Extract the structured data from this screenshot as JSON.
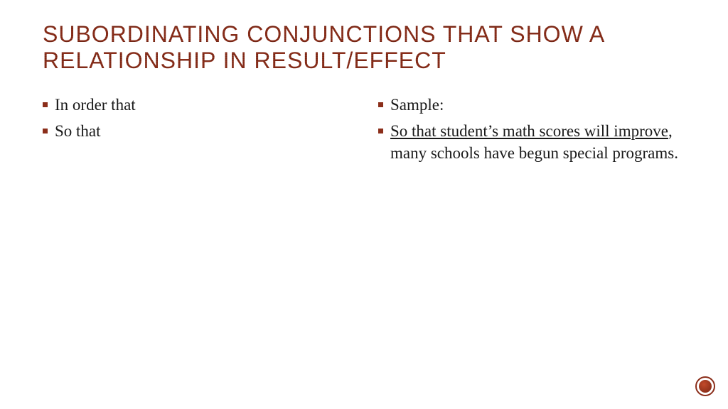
{
  "title": "SUBORDINATING CONJUNCTIONS THAT SHOW A RELATIONSHIP IN RESULT/EFFECT",
  "colors": {
    "heading": "#8b2e1a",
    "bullet": "#8b2e1a",
    "body_text": "#1a1a1a",
    "background": "#ffffff",
    "badge_border": "#8b2e1a",
    "badge_fill_light": "#c24a2a",
    "badge_fill_dark": "#7a2614"
  },
  "typography": {
    "title_font": "Impact",
    "title_size_pt": 24,
    "body_font": "Georgia",
    "body_size_pt": 17
  },
  "left_items": [
    {
      "text": "In order that"
    },
    {
      "text": "So that"
    }
  ],
  "right_items": [
    {
      "text": "Sample:"
    },
    {
      "underlined": "So that student’s math scores will improve",
      "rest": ", many schools have begun special programs."
    }
  ]
}
